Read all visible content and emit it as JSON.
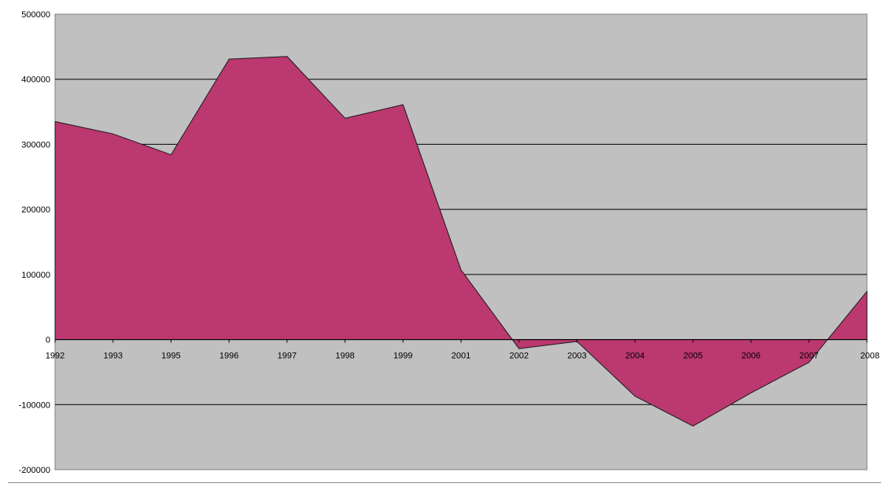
{
  "chart_data": {
    "type": "area",
    "title": "",
    "xlabel": "",
    "ylabel": "",
    "categories": [
      "1992",
      "1993",
      "1995",
      "1996",
      "1997",
      "1998",
      "1999",
      "2001",
      "2002",
      "2003",
      "2004",
      "2005",
      "2006",
      "2007",
      "2008"
    ],
    "series": [
      {
        "values": [
          335000,
          316000,
          284000,
          431000,
          435000,
          340000,
          361000,
          107000,
          -14000,
          -3000,
          -87000,
          -133000,
          -82000,
          -35000,
          74000
        ]
      }
    ],
    "yticks": [
      500000,
      400000,
      300000,
      200000,
      100000,
      0,
      -100000,
      -200000
    ],
    "ytick_labels": [
      "500000",
      "400000",
      "300000",
      "200000",
      "100000",
      "0",
      "-100000",
      "-200000"
    ],
    "ylim": [
      -200000,
      500000
    ],
    "grid": true,
    "legend": "none",
    "colors": {
      "plot_background": "#c0c0c0",
      "area_fill": "#bb3870",
      "area_stroke": "#1a1a1a",
      "gridline": "#000000"
    }
  }
}
